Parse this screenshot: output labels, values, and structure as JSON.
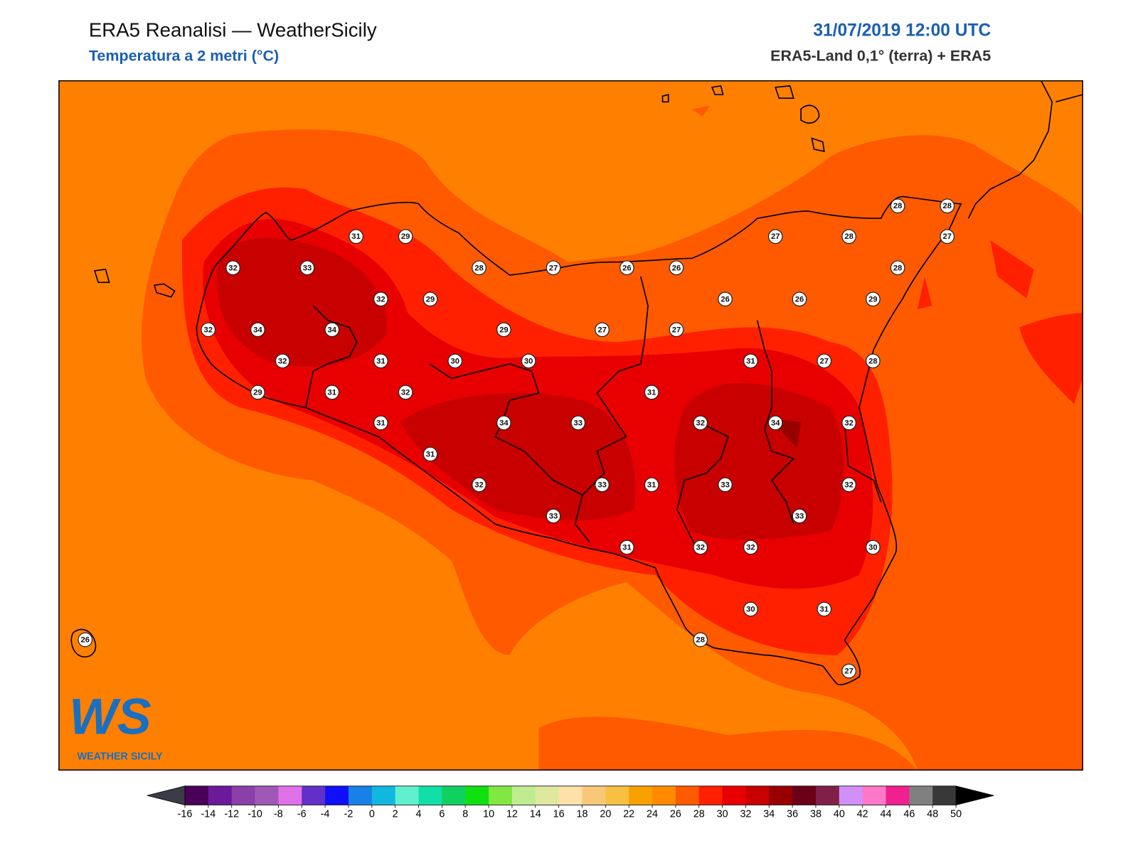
{
  "header": {
    "title": "ERA5 Reanalisi — WeatherSicily",
    "subtitle": "Temperatura a 2 metri (°C)",
    "datetime": "31/07/2019 12:00 UTC",
    "source": "ERA5-Land 0,1° (terra) + ERA5"
  },
  "logo": {
    "mark": "WS",
    "name": "WEATHER SICILY"
  },
  "stations": [
    {
      "value": 28
    },
    {
      "value": 28
    },
    {
      "value": 31
    },
    {
      "value": 29
    },
    {
      "value": 27
    },
    {
      "value": 28
    },
    {
      "value": 27
    },
    {
      "value": 32
    },
    {
      "value": 33
    },
    {
      "value": 28
    },
    {
      "value": 27
    },
    {
      "value": 26
    },
    {
      "value": 26
    },
    {
      "value": 28
    },
    {
      "value": 32
    },
    {
      "value": 29
    },
    {
      "value": 26
    },
    {
      "value": 26
    },
    {
      "value": 29
    },
    {
      "value": 32
    },
    {
      "value": 34
    },
    {
      "value": 34
    },
    {
      "value": 29
    },
    {
      "value": 27
    },
    {
      "value": 27
    },
    {
      "value": 32
    },
    {
      "value": 31
    },
    {
      "value": 30
    },
    {
      "value": 30
    },
    {
      "value": 31
    },
    {
      "value": 27
    },
    {
      "value": 28
    },
    {
      "value": 29
    },
    {
      "value": 31
    },
    {
      "value": 32
    },
    {
      "value": 31
    },
    {
      "value": 31
    },
    {
      "value": 34
    },
    {
      "value": 33
    },
    {
      "value": 32
    },
    {
      "value": 34
    },
    {
      "value": 32
    },
    {
      "value": 31
    },
    {
      "value": 32
    },
    {
      "value": 33
    },
    {
      "value": 31
    },
    {
      "value": 33
    },
    {
      "value": 32
    },
    {
      "value": 33
    },
    {
      "value": 33
    },
    {
      "value": 31
    },
    {
      "value": 32
    },
    {
      "value": 32
    },
    {
      "value": 30
    },
    {
      "value": 30
    },
    {
      "value": 31
    },
    {
      "value": 26
    },
    {
      "value": 28
    },
    {
      "value": 27
    }
  ],
  "colorbar": {
    "ticks": [
      -16,
      -14,
      -12,
      -10,
      -8,
      -6,
      -4,
      -2,
      0,
      2,
      4,
      6,
      8,
      10,
      12,
      14,
      16,
      18,
      20,
      22,
      24,
      26,
      28,
      30,
      32,
      34,
      36,
      38,
      40,
      42,
      44,
      46,
      48,
      50
    ],
    "colors": [
      "#4a0058",
      "#6a1a9a",
      "#8a40a8",
      "#a058b8",
      "#e070e8",
      "#6030c8",
      "#1010f8",
      "#1880e8",
      "#10b8e0",
      "#60f0d0",
      "#10e0a8",
      "#10d060",
      "#10e010",
      "#80e840",
      "#c0ec90",
      "#e0e8a0",
      "#ffe0a8",
      "#f8c878",
      "#f8c040",
      "#f8a000",
      "#ff8a00",
      "#ff5a00",
      "#ff2000",
      "#e80000",
      "#c80000",
      "#980000",
      "#6a0018",
      "#802048",
      "#d090f8",
      "#ff78c8",
      "#f02090",
      "#808080",
      "#383838"
    ],
    "under_color": "#3c3c48",
    "over_color": "#000000"
  }
}
